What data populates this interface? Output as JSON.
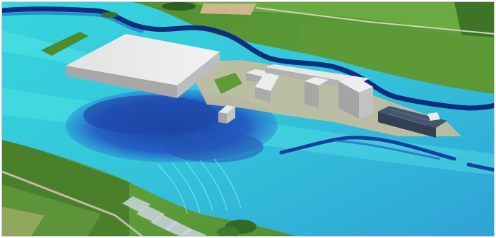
{
  "scene": {
    "view": "oblique-aerial-3d",
    "colors": {
      "field_green": "#5f9a38",
      "field_dark": "#3f7a2a",
      "field_beige": "#c8b58a",
      "river_deep": "#0b2f7a",
      "flood_shallow": "#34e2df",
      "flood_mid": "#2fb7e3",
      "flood_deep": "#1f4fb8",
      "roof_light": "#e9e9e9",
      "roof_shadow": "#a7a7a7",
      "solar_roof": "#3e4f67",
      "road": "#b9b29c"
    }
  }
}
